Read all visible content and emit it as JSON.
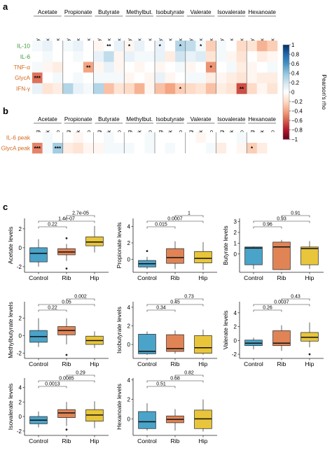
{
  "panel_letters": [
    "a",
    "b",
    "c"
  ],
  "heatmap_a": {
    "groups": [
      "Acetate",
      "Propionate",
      "Butyrate",
      "Methylbut.",
      "Isobutyrate",
      "Valerate",
      "Isovalerate",
      "Hexanoate"
    ],
    "subcolumns": [
      "Healthy",
      "Rib frx",
      "Hip frx"
    ],
    "rows": [
      {
        "label": "IL-10",
        "color": "#3a9a3a"
      },
      {
        "label": "IL-6",
        "color": "#3a9a3a"
      },
      {
        "label": "TNF-α",
        "color": "#d2691e"
      },
      {
        "label": "GlycA",
        "color": "#d2691e"
      },
      {
        "label": "IFN-γ",
        "color": "#d2691e"
      }
    ],
    "values": [
      [
        0.05,
        0.1,
        0.0,
        0.05,
        0.1,
        0.0,
        -0.05,
        0.0,
        0.1,
        -0.05,
        0.1,
        0.0,
        0.1,
        0.0,
        0.3,
        0.25,
        0.05,
        -0.25,
        0.05,
        0.0,
        -0.2,
        -0.15,
        -0.35,
        -0.25
      ],
      [
        0.0,
        0.05,
        0.0,
        0.0,
        0.05,
        0.0,
        0.1,
        0.25,
        -0.05,
        0.1,
        0.05,
        0.05,
        0.1,
        -0.1,
        0.2,
        0.1,
        0.15,
        -0.15,
        0.05,
        -0.05,
        -0.15,
        0.0,
        -0.1,
        -0.05
      ],
      [
        0.05,
        -0.05,
        -0.1,
        0.0,
        0.0,
        -0.4,
        -0.05,
        0.1,
        -0.05,
        0.0,
        -0.05,
        0.0,
        -0.05,
        0.0,
        0.05,
        -0.05,
        0.0,
        -0.45,
        0.0,
        0.05,
        -0.1,
        -0.05,
        0.0,
        0.05
      ],
      [
        -0.55,
        0.0,
        0.05,
        0.0,
        0.05,
        0.0,
        0.05,
        0.05,
        0.05,
        -0.05,
        0.0,
        -0.05,
        0.1,
        -0.05,
        0.0,
        0.05,
        0.05,
        -0.1,
        -0.05,
        -0.1,
        -0.15,
        -0.05,
        -0.1,
        -0.1
      ],
      [
        0.1,
        -0.15,
        -0.1,
        0.3,
        0.1,
        0.05,
        0.3,
        -0.3,
        -0.15,
        -0.2,
        -0.35,
        -0.05,
        -0.3,
        -0.4,
        -0.25,
        -0.2,
        -0.15,
        -0.3,
        -0.1,
        -0.15,
        -0.65,
        -0.2,
        -0.05,
        -0.15
      ]
    ],
    "stars": [
      {
        "row": 0,
        "col": 7,
        "text": "**"
      },
      {
        "row": 0,
        "col": 9,
        "text": "*"
      },
      {
        "row": 0,
        "col": 12,
        "text": "*"
      },
      {
        "row": 0,
        "col": 14,
        "text": "*"
      },
      {
        "row": 0,
        "col": 16,
        "text": "*"
      },
      {
        "row": 2,
        "col": 5,
        "text": "**"
      },
      {
        "row": 2,
        "col": 17,
        "text": "*"
      },
      {
        "row": 3,
        "col": 0,
        "text": "***"
      },
      {
        "row": 4,
        "col": 14,
        "text": "*"
      },
      {
        "row": 4,
        "col": 20,
        "text": "**"
      }
    ]
  },
  "heatmap_b": {
    "groups": [
      "Acetate",
      "Propionate",
      "Butyrate",
      "Methylbut.",
      "Isobutyrate",
      "Valerate",
      "Isovalerate",
      "Hexanoate"
    ],
    "subcolumns": [
      "Fasting",
      "Peak",
      "Dip"
    ],
    "rows": [
      {
        "label": "IL-6 peak",
        "color": "#d2691e"
      },
      {
        "label": "GlycA peak",
        "color": "#d2691e"
      }
    ],
    "values": [
      [
        0.0,
        0.05,
        0.0,
        0.0,
        -0.05,
        0.0,
        0.0,
        0.05,
        0.0,
        0.0,
        0.0,
        0.05,
        0.0,
        0.0,
        0.0,
        0.0,
        -0.05,
        0.0,
        0.0,
        0.0,
        0.05,
        0.0,
        0.0,
        0.0
      ],
      [
        -0.5,
        0.05,
        0.35,
        -0.1,
        -0.15,
        -0.05,
        -0.05,
        0.05,
        0.05,
        0.05,
        0.0,
        0.05,
        0.0,
        0.05,
        0.0,
        0.0,
        0.0,
        0.05,
        -0.1,
        0.0,
        -0.05,
        -0.25,
        -0.1,
        0.0
      ]
    ],
    "stars": [
      {
        "row": 1,
        "col": 0,
        "text": "***"
      },
      {
        "row": 1,
        "col": 2,
        "text": "***"
      },
      {
        "row": 1,
        "col": 21,
        "text": "*"
      }
    ]
  },
  "colorbar": {
    "label": "Pearson's rho",
    "ticks": [
      1,
      0.8,
      0.6,
      0.4,
      0.2,
      0,
      -0.2,
      -0.4,
      -0.6,
      -0.8,
      -1
    ],
    "tick_labels": [
      "1",
      "0.8",
      "0.6",
      "0.4",
      "0.2",
      "0",
      "−0.2",
      "−0.4",
      "−0.6",
      "−0.8",
      "−1"
    ]
  },
  "boxplots": {
    "groups": [
      "Control",
      "Rib",
      "Hip"
    ],
    "colors": [
      "#4aa3c8",
      "#e08456",
      "#e8c53a"
    ],
    "panels": [
      {
        "ylabel": "Acetate levels",
        "yticks": [
          -2,
          0,
          2
        ],
        "yrange": [
          -2.6,
          3.1
        ],
        "boxes": [
          {
            "q1": -1.5,
            "med": -0.6,
            "q3": 0.0,
            "lo": -2.0,
            "hi": 0.9,
            "out": []
          },
          {
            "q1": -0.75,
            "med": -0.45,
            "q3": -0.1,
            "lo": -1.4,
            "hi": 0.4,
            "out": [
              1.0,
              -2.2
            ]
          },
          {
            "q1": 0.2,
            "med": 0.6,
            "q3": 1.15,
            "lo": -0.5,
            "hi": 2.3,
            "out": []
          }
        ],
        "pvals": [
          {
            "a": 0,
            "b": 1,
            "label": "0.22"
          },
          {
            "a": 0,
            "b": 2,
            "label": "1.4e-07"
          },
          {
            "a": 1,
            "b": 2,
            "label": "2.7e-05"
          }
        ]
      },
      {
        "ylabel": "Propionate levels",
        "yticks": [
          0,
          2,
          4
        ],
        "yrange": [
          -1.6,
          5.0
        ],
        "boxes": [
          {
            "q1": -0.95,
            "med": -0.55,
            "q3": -0.15,
            "lo": -1.2,
            "hi": 0.3,
            "out": [
              1.0
            ]
          },
          {
            "q1": -0.5,
            "med": 0.2,
            "q3": 1.3,
            "lo": -1.2,
            "hi": 2.2,
            "out": []
          },
          {
            "q1": -0.45,
            "med": 0.1,
            "q3": 0.95,
            "lo": -1.3,
            "hi": 2.1,
            "out": []
          }
        ],
        "pvals": [
          {
            "a": 0,
            "b": 1,
            "label": "0.015"
          },
          {
            "a": 0,
            "b": 2,
            "label": "0.0007"
          },
          {
            "a": 1,
            "b": 2,
            "label": "1"
          }
        ]
      },
      {
        "ylabel": "Butyrate levels",
        "yticks": [
          0,
          1,
          2,
          3
        ],
        "yrange": [
          -1.7,
          3.3
        ],
        "boxes": [
          {
            "q1": -1.0,
            "med": 0.55,
            "q3": 0.65,
            "lo": -1.4,
            "hi": 0.7,
            "out": []
          },
          {
            "q1": -1.45,
            "med": 0.65,
            "q3": 1.1,
            "lo": -1.5,
            "hi": 1.3,
            "out": []
          },
          {
            "q1": -1.0,
            "med": 0.5,
            "q3": 0.65,
            "lo": -1.4,
            "hi": 1.2,
            "out": []
          }
        ],
        "pvals": [
          {
            "a": 0,
            "b": 1,
            "label": "0.96"
          },
          {
            "a": 0,
            "b": 2,
            "label": "0.93"
          },
          {
            "a": 1,
            "b": 2,
            "label": "0.91"
          }
        ]
      },
      {
        "ylabel": "Methylbutyrate levels",
        "yticks": [
          -2,
          0,
          2
        ],
        "yrange": [
          -2.6,
          3.9
        ],
        "boxes": [
          {
            "q1": -0.75,
            "med": -0.1,
            "q3": 0.6,
            "lo": -1.3,
            "hi": 2.0,
            "out": []
          },
          {
            "q1": 0.1,
            "med": 0.6,
            "q3": 1.05,
            "lo": -1.0,
            "hi": 2.0,
            "out": [
              -2.2
            ]
          },
          {
            "q1": -1.0,
            "med": -0.55,
            "q3": -0.05,
            "lo": -1.4,
            "hi": 0.5,
            "out": []
          }
        ],
        "pvals": [
          {
            "a": 0,
            "b": 1,
            "label": "0.22"
          },
          {
            "a": 0,
            "b": 2,
            "label": "0.05"
          },
          {
            "a": 1,
            "b": 2,
            "label": "0.002"
          }
        ]
      },
      {
        "ylabel": "Isobutyrate levels",
        "yticks": [
          0,
          2,
          4
        ],
        "yrange": [
          -1.5,
          4.6
        ],
        "boxes": [
          {
            "q1": -1.0,
            "med": -0.75,
            "q3": 1.1,
            "lo": -1.1,
            "hi": 1.4,
            "out": []
          },
          {
            "q1": -0.75,
            "med": -0.45,
            "q3": 1.05,
            "lo": -1.0,
            "hi": 1.5,
            "out": []
          },
          {
            "q1": -0.95,
            "med": -0.35,
            "q3": 0.95,
            "lo": -1.1,
            "hi": 1.6,
            "out": []
          }
        ],
        "pvals": [
          {
            "a": 0,
            "b": 1,
            "label": "0.34"
          },
          {
            "a": 0,
            "b": 2,
            "label": "0.45"
          },
          {
            "a": 1,
            "b": 2,
            "label": "0.73"
          }
        ]
      },
      {
        "ylabel": "Valerate levels",
        "yticks": [
          -2,
          0,
          2,
          4
        ],
        "yrange": [
          -2.6,
          5.6
        ],
        "boxes": [
          {
            "q1": -0.75,
            "med": -0.4,
            "q3": 0.05,
            "lo": -1.3,
            "hi": 0.4,
            "out": []
          },
          {
            "q1": -0.75,
            "med": -0.4,
            "q3": 1.4,
            "lo": -1.5,
            "hi": 2.2,
            "out": []
          },
          {
            "q1": -0.1,
            "med": 0.45,
            "q3": 1.15,
            "lo": -1.0,
            "hi": 2.6,
            "out": [
              -2.0
            ]
          }
        ],
        "pvals": [
          {
            "a": 0,
            "b": 1,
            "label": "0.26"
          },
          {
            "a": 0,
            "b": 2,
            "label": "0.0037"
          },
          {
            "a": 1,
            "b": 2,
            "label": "0.43"
          }
        ]
      },
      {
        "ylabel": "Isovalerate levels",
        "yticks": [
          -2,
          0,
          2,
          4
        ],
        "yrange": [
          -2.6,
          5.3
        ],
        "boxes": [
          {
            "q1": -1.0,
            "med": -0.5,
            "q3": 0.0,
            "lo": -1.5,
            "hi": 0.7,
            "out": []
          },
          {
            "q1": -0.15,
            "med": 0.5,
            "q3": 0.95,
            "lo": -1.3,
            "hi": 2.0,
            "out": [
              -1.8
            ]
          },
          {
            "q1": -0.65,
            "med": 0.2,
            "q3": 0.95,
            "lo": -1.6,
            "hi": 2.1,
            "out": []
          }
        ],
        "pvals": [
          {
            "a": 0,
            "b": 1,
            "label": "0.0013"
          },
          {
            "a": 0,
            "b": 2,
            "label": "0.0085"
          },
          {
            "a": 1,
            "b": 2,
            "label": "0.29"
          }
        ]
      },
      {
        "ylabel": "Hexanoate levels",
        "yticks": [
          0,
          2,
          4
        ],
        "yrange": [
          -1.7,
          4.2
        ],
        "boxes": [
          {
            "q1": -1.0,
            "med": -0.3,
            "q3": 0.75,
            "lo": -1.2,
            "hi": 1.6,
            "out": []
          },
          {
            "q1": -0.4,
            "med": -0.05,
            "q3": 0.3,
            "lo": -1.2,
            "hi": 1.0,
            "out": []
          },
          {
            "q1": -1.0,
            "med": 0.0,
            "q3": 0.9,
            "lo": -1.3,
            "hi": 2.0,
            "out": []
          }
        ],
        "pvals": [
          {
            "a": 0,
            "b": 1,
            "label": "0.51"
          },
          {
            "a": 0,
            "b": 2,
            "label": "0.68"
          },
          {
            "a": 1,
            "b": 2,
            "label": "0.82"
          }
        ]
      }
    ]
  }
}
